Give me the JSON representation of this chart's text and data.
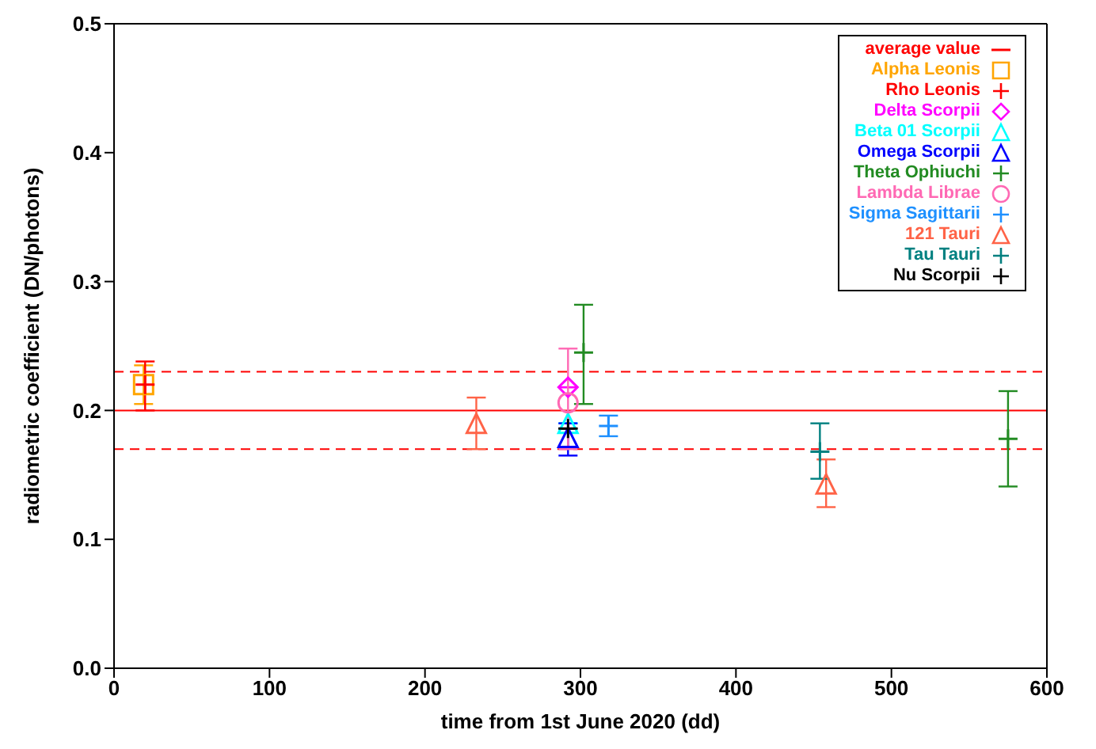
{
  "chart_data": {
    "type": "scatter",
    "xlabel": "time from 1st June 2020 (dd)",
    "ylabel": "radiometric coefficient (DN/photons)",
    "xlim": [
      0,
      600
    ],
    "xticks": [
      0,
      100,
      200,
      300,
      400,
      500,
      600
    ],
    "ylim": [
      0,
      0.5
    ],
    "yticks": [
      {
        "value": 0,
        "label": "0.0"
      },
      {
        "value": 0.1,
        "label": "0.1"
      },
      {
        "value": 0.2,
        "label": "0.2"
      },
      {
        "value": 0.3,
        "label": "0.3"
      },
      {
        "value": 0.4,
        "label": "0.4"
      },
      {
        "value": 0.5,
        "label": "0.5"
      }
    ],
    "grid": false,
    "legend": "top right",
    "ref_lines": [
      {
        "axis": "y",
        "value": 0.2,
        "label": "average value",
        "color": "#ff0000",
        "line_style": "solid"
      },
      {
        "axis": "y",
        "value": 0.23,
        "color": "#ff0000",
        "line_style": "dashed"
      },
      {
        "axis": "y",
        "value": 0.17,
        "color": "#ff0000",
        "line_style": "dashed"
      }
    ],
    "series": [
      {
        "name": "Alpha Leonis",
        "color": "#ffa500",
        "marker": "square",
        "x": [
          19
        ],
        "values": [
          0.22
        ],
        "errors": [
          0.015
        ]
      },
      {
        "name": "Rho Leonis",
        "color": "#ff0000",
        "marker": "cross",
        "x": [
          20
        ],
        "values": [
          0.22
        ],
        "errors": [
          [
            0.2,
            0.238
          ]
        ]
      },
      {
        "name": "Delta Scorpii",
        "color": "#ff00ff",
        "marker": "diamond",
        "x": [
          292
        ],
        "values": [
          0.218
        ],
        "errors": [
          null
        ]
      },
      {
        "name": "Beta 01 Scorpii",
        "color": "#00ffff",
        "marker": "triangle",
        "x": [
          292
        ],
        "values": [
          0.19
        ],
        "errors": [
          null
        ]
      },
      {
        "name": "Omega Scorpii",
        "color": "#0000ff",
        "marker": "triangle",
        "x": [
          292
        ],
        "values": [
          0.179
        ],
        "errors": [
          [
            0.165,
            0.19
          ]
        ]
      },
      {
        "name": "Theta Ophiuchi",
        "color": "#228b22",
        "marker": "cross",
        "x": [
          302,
          575
        ],
        "values": [
          0.245,
          0.178
        ],
        "errors": [
          [
            0.205,
            0.282
          ],
          [
            0.141,
            0.215
          ]
        ]
      },
      {
        "name": "Lambda Librae",
        "color": "#ff69b4",
        "marker": "circle",
        "x": [
          292
        ],
        "values": [
          0.206
        ],
        "errors": [
          [
            0.17,
            0.248
          ]
        ]
      },
      {
        "name": "Sigma Sagittarii",
        "color": "#1e90ff",
        "marker": "cross",
        "x": [
          318
        ],
        "values": [
          0.188
        ],
        "errors": [
          0.008
        ]
      },
      {
        "name": "121 Tauri",
        "color": "#ff6347",
        "marker": "triangle",
        "x": [
          233,
          458
        ],
        "values": [
          0.19,
          0.143
        ],
        "errors": [
          [
            0.17,
            0.21
          ],
          [
            0.125,
            0.162
          ]
        ]
      },
      {
        "name": "Tau Tauri",
        "color": "#008080",
        "marker": "cross",
        "x": [
          454
        ],
        "values": [
          0.168
        ],
        "errors": [
          [
            0.147,
            0.19
          ]
        ]
      },
      {
        "name": "Nu Scorpii",
        "color": "#000000",
        "marker": "cross",
        "x": [
          292
        ],
        "values": [
          0.186
        ],
        "errors": [
          null
        ]
      }
    ]
  }
}
